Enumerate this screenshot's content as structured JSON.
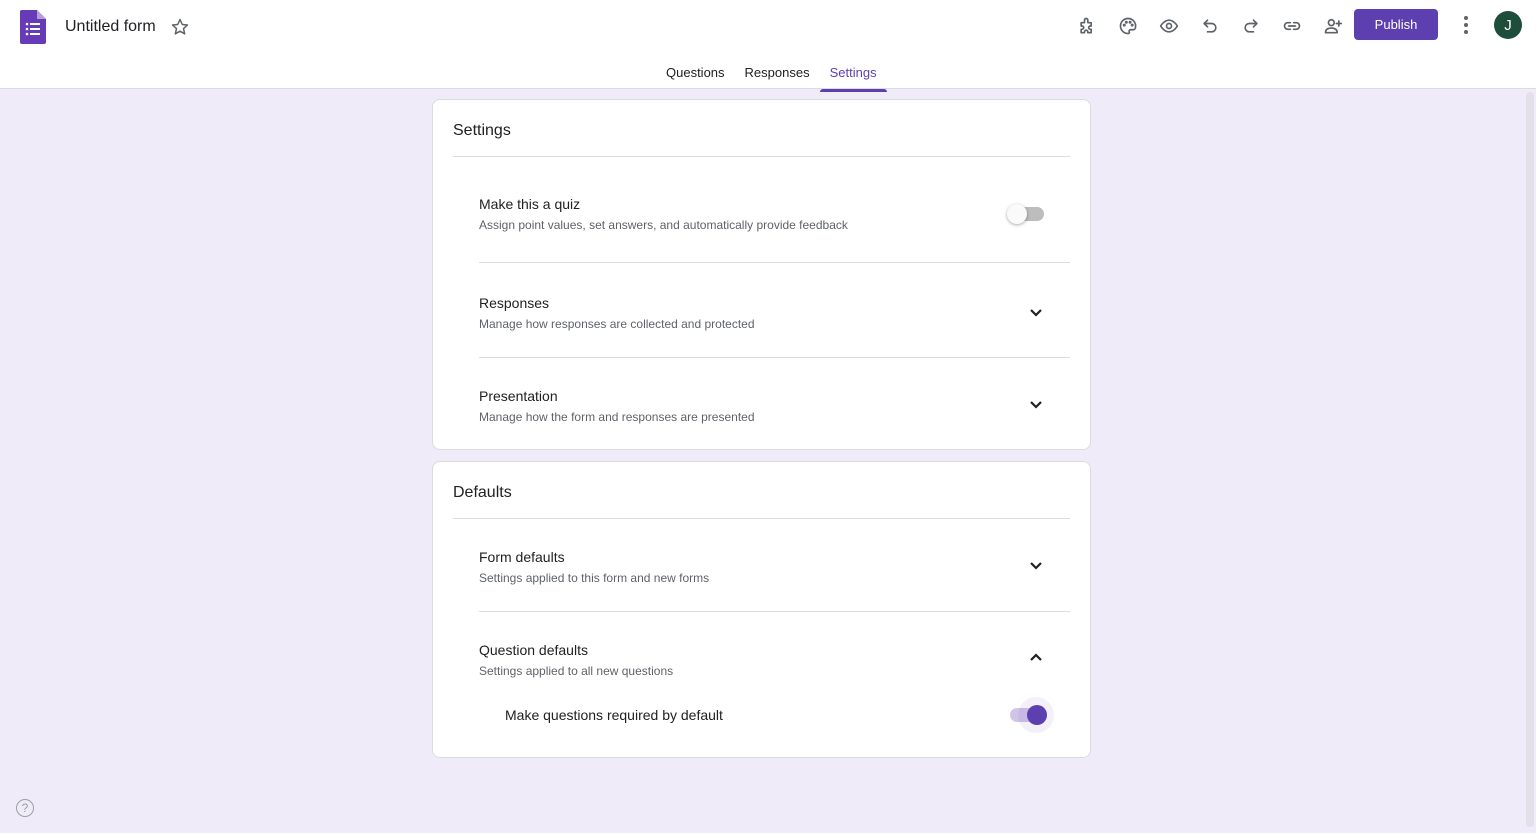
{
  "header": {
    "title": "Untitled form",
    "publish_label": "Publish",
    "avatar_initial": "J",
    "icons": [
      "add-ons-icon",
      "palette-icon",
      "preview-eye-icon",
      "undo-icon",
      "redo-icon",
      "link-icon",
      "add-collaborator-icon"
    ]
  },
  "tabs": [
    {
      "label": "Questions"
    },
    {
      "label": "Responses"
    },
    {
      "label": "Settings",
      "active": true
    }
  ],
  "colors": {
    "accent": "#5e3fb0",
    "background": "#f0ebf8"
  },
  "settings": {
    "title": "Settings",
    "quiz": {
      "title": "Make this a quiz",
      "subtitle": "Assign point values, set answers, and automatically provide feedback",
      "enabled": false
    },
    "responses": {
      "title": "Responses",
      "subtitle": "Manage how responses are collected and protected"
    },
    "presentation": {
      "title": "Presentation",
      "subtitle": "Manage how the form and responses are presented"
    }
  },
  "defaults": {
    "title": "Defaults",
    "form_defaults": {
      "title": "Form defaults",
      "subtitle": "Settings applied to this form and new forms"
    },
    "question_defaults": {
      "title": "Question defaults",
      "subtitle": "Settings applied to all new questions",
      "required": {
        "label": "Make questions required by default",
        "enabled": true
      }
    }
  },
  "help": "?"
}
